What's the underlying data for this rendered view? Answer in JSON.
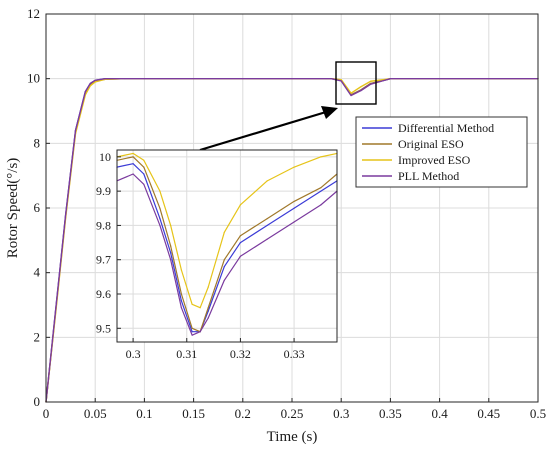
{
  "chart_data": [
    {
      "type": "line",
      "xlabel": "Time (s)",
      "ylabel": "Rotor Speed(°/s)",
      "xlim": [
        0,
        0.5
      ],
      "ylim": [
        0,
        12
      ],
      "xticks": [
        "0",
        "0.05",
        "0.1",
        "0.15",
        "0.2",
        "0.25",
        "0.3",
        "0.35",
        "0.4",
        "0.45",
        "0.5"
      ],
      "yticks": [
        "0",
        "2",
        "4",
        "6",
        "8",
        "10",
        "12"
      ],
      "grid": true,
      "legend_position": "right-middle",
      "series": [
        {
          "name": "Differential Method",
          "color": "#3b3bd6",
          "x": [
            0,
            0.01,
            0.02,
            0.03,
            0.04,
            0.045,
            0.05,
            0.06,
            0.08,
            0.1,
            0.2,
            0.29,
            0.3,
            0.31,
            0.32,
            0.33,
            0.35,
            0.4,
            0.5
          ],
          "y": [
            0,
            2.9,
            5.8,
            8.4,
            9.6,
            9.85,
            9.95,
            10.0,
            10.0,
            10.0,
            10.0,
            10.0,
            9.95,
            9.5,
            9.65,
            9.85,
            10.0,
            10.0,
            10.0
          ]
        },
        {
          "name": "Original ESO",
          "color": "#a0782a",
          "x": [
            0,
            0.01,
            0.02,
            0.03,
            0.04,
            0.045,
            0.05,
            0.06,
            0.08,
            0.1,
            0.2,
            0.29,
            0.3,
            0.31,
            0.32,
            0.33,
            0.35,
            0.4,
            0.5
          ],
          "y": [
            0,
            2.85,
            5.75,
            8.35,
            9.55,
            9.8,
            9.92,
            9.98,
            10.0,
            10.0,
            10.0,
            10.0,
            9.95,
            9.5,
            9.65,
            9.85,
            10.0,
            10.0,
            10.0
          ]
        },
        {
          "name": "Improved ESO",
          "color": "#e6c419",
          "x": [
            0,
            0.01,
            0.02,
            0.03,
            0.04,
            0.045,
            0.05,
            0.06,
            0.08,
            0.1,
            0.2,
            0.29,
            0.3,
            0.31,
            0.32,
            0.33,
            0.35,
            0.4,
            0.5
          ],
          "y": [
            0,
            2.8,
            5.7,
            8.3,
            9.5,
            9.78,
            9.9,
            9.98,
            10.0,
            10.0,
            10.0,
            10.0,
            9.97,
            9.55,
            9.75,
            9.92,
            10.0,
            10.0,
            10.0
          ]
        },
        {
          "name": "PLL Method",
          "color": "#7a3a9e",
          "x": [
            0,
            0.01,
            0.02,
            0.03,
            0.04,
            0.045,
            0.05,
            0.06,
            0.08,
            0.1,
            0.2,
            0.29,
            0.3,
            0.31,
            0.32,
            0.33,
            0.35,
            0.4,
            0.5
          ],
          "y": [
            0,
            2.9,
            5.8,
            8.4,
            9.6,
            9.85,
            9.95,
            10.0,
            10.0,
            10.0,
            10.0,
            10.0,
            9.93,
            9.48,
            9.63,
            9.83,
            10.0,
            10.0,
            10.0
          ]
        }
      ]
    },
    {
      "type": "line",
      "role": "inset",
      "xlim": [
        0.297,
        0.338
      ],
      "ylim": [
        9.46,
        10.02
      ],
      "xticks": [
        "0.3",
        "0.31",
        "0.32",
        "0.33"
      ],
      "yticks": [
        "9.5",
        "9.6",
        "9.7",
        "9.8",
        "9.9",
        "10"
      ],
      "grid": true,
      "series": [
        {
          "name": "Differential Method",
          "color": "#3b3bd6",
          "x": [
            0.297,
            0.3,
            0.302,
            0.305,
            0.307,
            0.309,
            0.311,
            0.3125,
            0.314,
            0.317,
            0.32,
            0.325,
            0.33,
            0.335,
            0.338
          ],
          "y": [
            9.97,
            9.98,
            9.95,
            9.82,
            9.72,
            9.58,
            9.49,
            9.49,
            9.55,
            9.68,
            9.75,
            9.8,
            9.85,
            9.9,
            9.93
          ]
        },
        {
          "name": "Original ESO",
          "color": "#a0782a",
          "x": [
            0.297,
            0.3,
            0.302,
            0.305,
            0.307,
            0.309,
            0.311,
            0.3125,
            0.314,
            0.317,
            0.32,
            0.325,
            0.33,
            0.335,
            0.338
          ],
          "y": [
            9.99,
            10.0,
            9.97,
            9.85,
            9.74,
            9.6,
            9.5,
            9.49,
            9.56,
            9.7,
            9.77,
            9.82,
            9.87,
            9.91,
            9.95
          ]
        },
        {
          "name": "Improved ESO",
          "color": "#e6c419",
          "x": [
            0.297,
            0.3,
            0.302,
            0.305,
            0.307,
            0.309,
            0.311,
            0.3125,
            0.314,
            0.317,
            0.32,
            0.325,
            0.33,
            0.335,
            0.338
          ],
          "y": [
            10.0,
            10.01,
            9.99,
            9.9,
            9.8,
            9.67,
            9.57,
            9.56,
            9.62,
            9.78,
            9.86,
            9.93,
            9.97,
            10.0,
            10.01
          ]
        },
        {
          "name": "PLL Method",
          "color": "#7a3a9e",
          "x": [
            0.297,
            0.3,
            0.302,
            0.305,
            0.307,
            0.309,
            0.311,
            0.3125,
            0.314,
            0.317,
            0.32,
            0.325,
            0.33,
            0.335,
            0.338
          ],
          "y": [
            9.93,
            9.95,
            9.92,
            9.8,
            9.7,
            9.56,
            9.48,
            9.49,
            9.53,
            9.64,
            9.71,
            9.76,
            9.81,
            9.86,
            9.9
          ]
        }
      ]
    }
  ]
}
